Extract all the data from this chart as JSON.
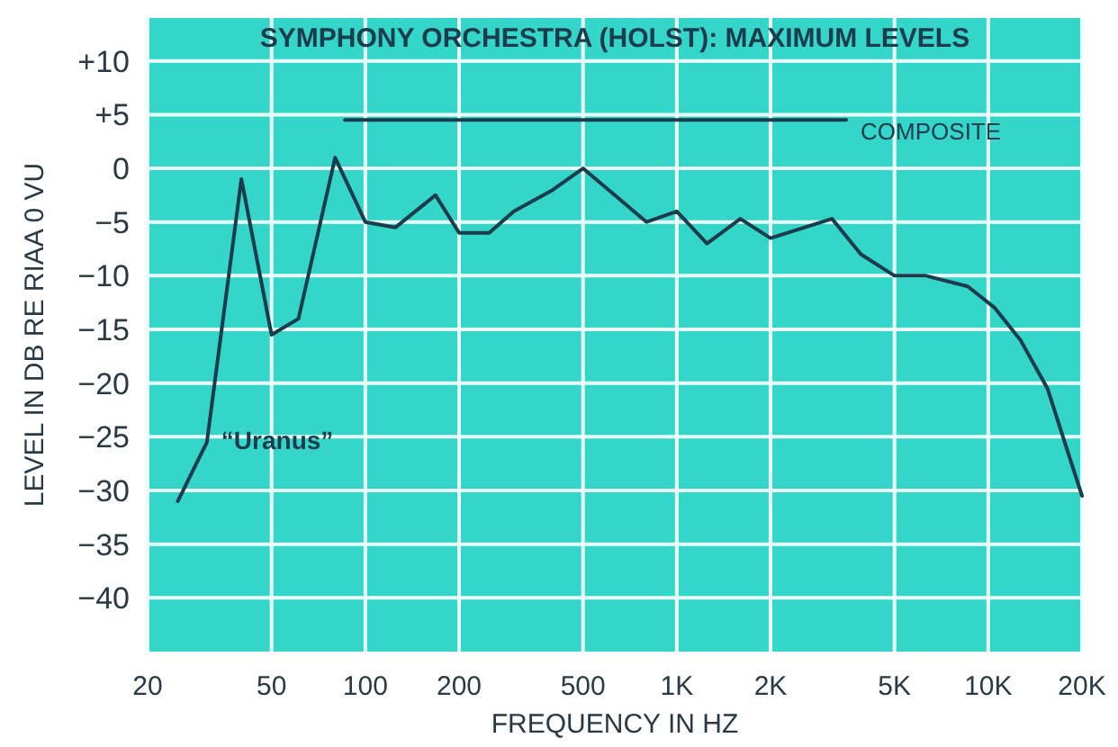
{
  "chart_data": {
    "type": "line",
    "title": "SYMPHONY ORCHESTRA (HOLST): MAXIMUM LEVELS",
    "xlabel": "FREQUENCY IN HZ",
    "ylabel": "LEVEL IN DB RE RIAA 0 VU",
    "log": "x",
    "grid": true,
    "marker": "none",
    "line_style": "solid",
    "xlim": [
      20,
      20000
    ],
    "ylim": [
      -45,
      14
    ],
    "xticks": [
      20,
      50,
      100,
      200,
      500,
      {
        "value": 1000,
        "label": "1K"
      },
      {
        "value": 2000,
        "label": "2K"
      },
      {
        "value": 5000,
        "label": "5K"
      },
      {
        "value": 10000,
        "label": "10K"
      },
      {
        "value": 20000,
        "label": "20K"
      }
    ],
    "yticks": [
      {
        "value": 10,
        "label": "+10"
      },
      {
        "value": 5,
        "label": "+5"
      },
      0,
      {
        "value": -5,
        "label": "−5"
      },
      {
        "value": -10,
        "label": "−10"
      },
      {
        "value": -15,
        "label": "−15"
      },
      {
        "value": -20,
        "label": "−20"
      },
      {
        "value": -25,
        "label": "−25"
      },
      {
        "value": -30,
        "label": "−30"
      },
      {
        "value": -35,
        "label": "−35"
      },
      {
        "value": -40,
        "label": "−40"
      }
    ],
    "series": [
      {
        "name": "“Uranus”",
        "color": "#1c3b4c",
        "x": [
          25,
          31,
          40,
          50,
          61,
          80,
          100,
          125,
          168,
          200,
          250,
          300,
          400,
          500,
          800,
          1000,
          1250,
          1600,
          2000,
          3150,
          3900,
          5000,
          6300,
          8600,
          10500,
          12700,
          15500,
          17600,
          20000
        ],
        "values": [
          -31,
          -25.5,
          -1,
          -15.5,
          -14,
          1,
          -5,
          -5.5,
          -2.5,
          -6,
          -6,
          -4,
          -2,
          0,
          -5,
          -4,
          -7,
          -4.7,
          -6.5,
          -4.7,
          -8,
          -10,
          -10,
          -11,
          -13,
          -16,
          -20.5,
          -25.5,
          -30.5
        ]
      },
      {
        "name": "COMPOSITE",
        "color": "#1c3b4c",
        "x": [
          86,
          3500
        ],
        "values": [
          4.5,
          4.5
        ]
      }
    ]
  }
}
